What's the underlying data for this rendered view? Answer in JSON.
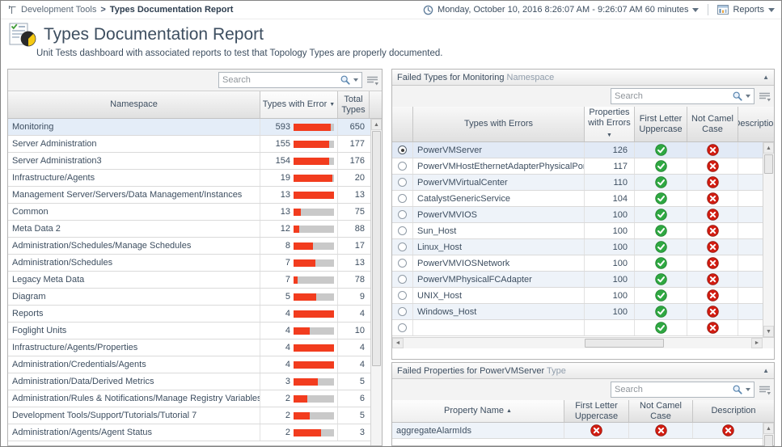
{
  "breadcrumb": {
    "section": "Development Tools",
    "separator": ">",
    "page": "Types Documentation Report"
  },
  "topbar": {
    "time_range": "Monday, October 10, 2016 8:26:07 AM - 9:26:07 AM 60 minutes",
    "reports_label": "Reports"
  },
  "header": {
    "title": "Types Documentation Report",
    "description": "Unit Tests dashboard with associated reports to test that Topology Types are properly documented."
  },
  "search_placeholder": "Search",
  "colors": {
    "accent_text": "#3d4e60",
    "bar_red": "#f23c1e",
    "bar_track": "#c9c9c9",
    "pass_green": "#2fa842",
    "fail_red": "#d21d12",
    "selection_blue": "#e4edf8",
    "zebra_blue": "#eef3f9"
  },
  "namespaces_panel": {
    "columns": [
      "Namespace",
      "Types with Error",
      "Total Types"
    ],
    "sort": {
      "column": "Types with Error",
      "direction": "desc"
    },
    "rows": [
      {
        "namespace": "Monitoring",
        "errors": 593,
        "total": 650,
        "selected": true
      },
      {
        "namespace": "Server Administration",
        "errors": 155,
        "total": 177
      },
      {
        "namespace": "Server Administration3",
        "errors": 154,
        "total": 176
      },
      {
        "namespace": "Infrastructure/Agents",
        "errors": 19,
        "total": 20
      },
      {
        "namespace": "Management Server/Servers/Data Management/Instances",
        "errors": 13,
        "total": 13
      },
      {
        "namespace": "Common",
        "errors": 13,
        "total": 75
      },
      {
        "namespace": "Meta Data 2",
        "errors": 12,
        "total": 88
      },
      {
        "namespace": "Administration/Schedules/Manage Schedules",
        "errors": 8,
        "total": 17
      },
      {
        "namespace": "Administration/Schedules",
        "errors": 7,
        "total": 13
      },
      {
        "namespace": "Legacy Meta Data",
        "errors": 7,
        "total": 78
      },
      {
        "namespace": "Diagram",
        "errors": 5,
        "total": 9
      },
      {
        "namespace": "Reports",
        "errors": 4,
        "total": 4
      },
      {
        "namespace": "Foglight Units",
        "errors": 4,
        "total": 10
      },
      {
        "namespace": "Infrastructure/Agents/Properties",
        "errors": 4,
        "total": 4
      },
      {
        "namespace": "Administration/Credentials/Agents",
        "errors": 4,
        "total": 4
      },
      {
        "namespace": "Administration/Data/Derived Metrics",
        "errors": 3,
        "total": 5
      },
      {
        "namespace": "Administration/Rules & Notifications/Manage Registry Variables",
        "errors": 2,
        "total": 6
      },
      {
        "namespace": "Development Tools/Support/Tutorials/Tutorial 7",
        "errors": 2,
        "total": 5
      },
      {
        "namespace": "Administration/Agents/Agent Status",
        "errors": 2,
        "total": 3
      }
    ]
  },
  "failed_types_panel": {
    "title_segments": [
      {
        "text": "Failed Types for Monitoring",
        "muted": false
      },
      {
        "text": "Namespace",
        "muted": true
      }
    ],
    "columns": [
      "Types with Errors",
      "Properties with Errors",
      "First Letter Uppercase",
      "Not Camel Case",
      "Description"
    ],
    "sort": {
      "column": "Properties with Errors",
      "direction": "desc"
    },
    "rows": [
      {
        "type": "PowerVMServer",
        "properties_with_errors": 126,
        "first_letter_uppercase": "pass",
        "not_camel_case": "fail",
        "selected": true
      },
      {
        "type": "PowerVMHostEthernetAdapterPhysicalPort",
        "properties_with_errors": 117,
        "first_letter_uppercase": "pass",
        "not_camel_case": "fail"
      },
      {
        "type": "PowerVMVirtualCenter",
        "properties_with_errors": 110,
        "first_letter_uppercase": "pass",
        "not_camel_case": "fail"
      },
      {
        "type": "CatalystGenericService",
        "properties_with_errors": 104,
        "first_letter_uppercase": "pass",
        "not_camel_case": "fail"
      },
      {
        "type": "PowerVMVIOS",
        "properties_with_errors": 100,
        "first_letter_uppercase": "pass",
        "not_camel_case": "fail"
      },
      {
        "type": "Sun_Host",
        "properties_with_errors": 100,
        "first_letter_uppercase": "pass",
        "not_camel_case": "fail"
      },
      {
        "type": "Linux_Host",
        "properties_with_errors": 100,
        "first_letter_uppercase": "pass",
        "not_camel_case": "fail"
      },
      {
        "type": "PowerVMVIOSNetwork",
        "properties_with_errors": 100,
        "first_letter_uppercase": "pass",
        "not_camel_case": "fail"
      },
      {
        "type": "PowerVMPhysicalFCAdapter",
        "properties_with_errors": 100,
        "first_letter_uppercase": "pass",
        "not_camel_case": "fail"
      },
      {
        "type": "UNIX_Host",
        "properties_with_errors": 100,
        "first_letter_uppercase": "pass",
        "not_camel_case": "fail"
      },
      {
        "type": "Windows_Host",
        "properties_with_errors": 100,
        "first_letter_uppercase": "pass",
        "not_camel_case": "fail"
      }
    ],
    "partial_row": {
      "type": "",
      "properties_with_errors": "",
      "first_letter_uppercase": "pass",
      "not_camel_case": "fail"
    }
  },
  "failed_properties_panel": {
    "title_segments": [
      {
        "text": "Failed Properties for PowerVMServer",
        "muted": false
      },
      {
        "text": "Type",
        "muted": true
      }
    ],
    "columns": [
      "Property Name",
      "First Letter Uppercase",
      "Not Camel Case",
      "Description"
    ],
    "sort": {
      "column": "Property Name",
      "direction": "asc"
    },
    "rows": [
      {
        "property": "aggregateAlarmIds",
        "first_letter_uppercase": "fail",
        "not_camel_case": "fail",
        "description": "fail"
      }
    ]
  }
}
